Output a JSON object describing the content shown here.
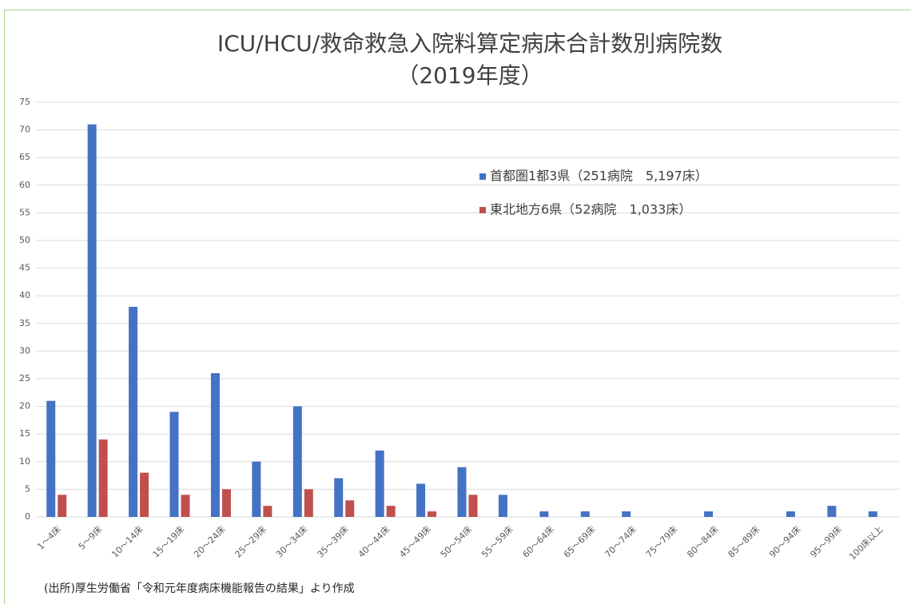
{
  "chart_data": {
    "type": "bar",
    "title": "ICU/HCU/救命救急入院料算定病床合計数別病院数",
    "subtitle": "（2019年度）",
    "categories": [
      "1～4床",
      "5～9床",
      "10～14床",
      "15～19床",
      "20～24床",
      "25～29床",
      "30～34床",
      "35～39床",
      "40～44床",
      "45～49床",
      "50～54床",
      "55～59床",
      "60～64床",
      "65～69床",
      "70～74床",
      "75～79床",
      "80～84床",
      "85～89床",
      "90～94床",
      "95～99床",
      "100床以上"
    ],
    "series": [
      {
        "name": "首都圏1都3県（251病院　5,197床）",
        "color": "#4472c4",
        "values": [
          21,
          71,
          38,
          19,
          26,
          10,
          20,
          7,
          12,
          6,
          9,
          4,
          1,
          1,
          1,
          0,
          1,
          0,
          1,
          2,
          1
        ]
      },
      {
        "name": "東北地方6県（52病院　1,033床）",
        "color": "#c0504d",
        "values": [
          4,
          14,
          8,
          4,
          5,
          2,
          5,
          3,
          2,
          1,
          4,
          0,
          0,
          0,
          0,
          0,
          0,
          0,
          0,
          0,
          0
        ]
      }
    ],
    "ylim": [
      0,
      75
    ],
    "yticks": [
      0,
      5,
      10,
      15,
      20,
      25,
      30,
      35,
      40,
      45,
      50,
      55,
      60,
      65,
      70,
      75
    ],
    "grid": true,
    "source": "(出所)厚生労働省「令和元年度病床機能報告の結果」より作成"
  }
}
